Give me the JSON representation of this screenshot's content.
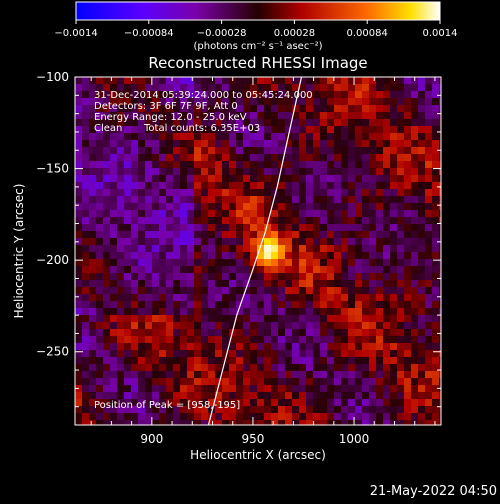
{
  "chart_data": {
    "type": "heatmap",
    "title": "Reconstructed RHESSI Image",
    "xlabel": "Heliocentric X (arcsec)",
    "ylabel": "Heliocentric Y (arcsec)",
    "xlim": [
      862,
      1043
    ],
    "ylim": [
      -290,
      -100
    ],
    "x_ticks": [
      900,
      950,
      1000
    ],
    "y_ticks": [
      -100,
      -150,
      -200,
      -250
    ],
    "colorbar": {
      "min": -0.0014,
      "max": 0.0014,
      "tick_labels": [
        "-0.0014",
        "-0.00084",
        "-0.00028",
        "0.00028",
        "0.00084",
        "0.0014"
      ],
      "unit": "(photons cm⁻² s⁻¹ asec⁻²)"
    },
    "source": {
      "peak_x": 958,
      "peak_y": -195,
      "peak_value": 0.0014,
      "sigma_x": 5.5,
      "sigma_y": 7
    },
    "limb_curve": [
      [
        928,
        -290
      ],
      [
        935,
        -260
      ],
      [
        942,
        -230
      ],
      [
        950,
        -205
      ],
      [
        956,
        -185
      ],
      [
        962,
        -160
      ],
      [
        968,
        -130
      ],
      [
        974,
        -100
      ]
    ],
    "annotations": {
      "time": "31-Dec-2014 05:39:24.000 to 05:45:24.000",
      "detectors": "Detectors: 3F 6F 7F 9F, Att 0",
      "energy": "Energy Range: 12.0 - 25.0 keV",
      "clean_label": "Clean",
      "total_counts": "Total counts: 6.35E+03",
      "peak_position": "Position of Peak = [958,-195]"
    }
  },
  "footer": {
    "date": "21-May-2022 04:50"
  }
}
